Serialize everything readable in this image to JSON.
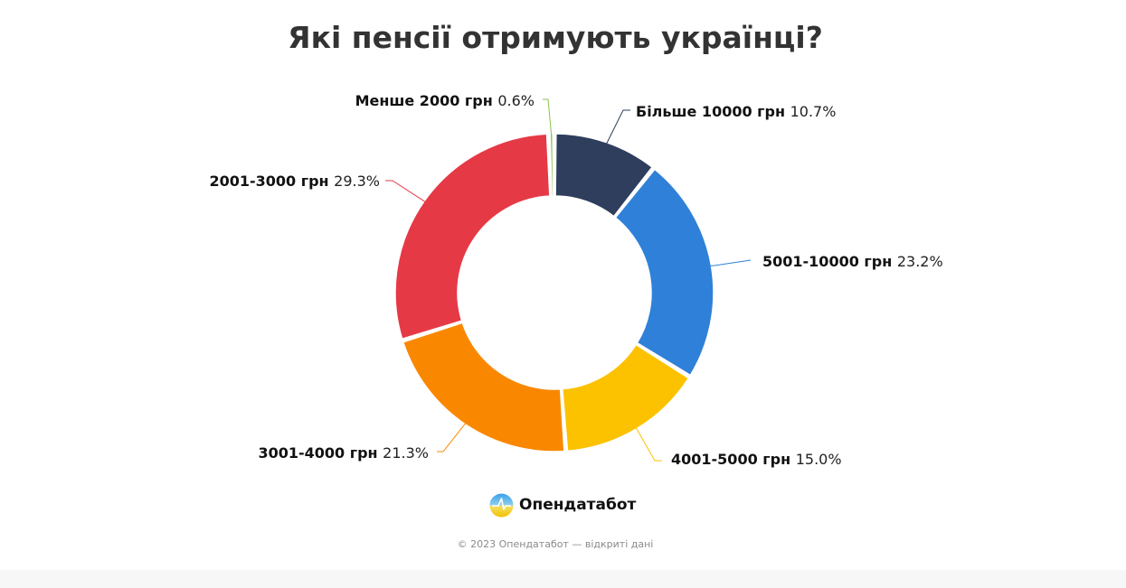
{
  "title": "Які пенсії отримують українці?",
  "brand": {
    "name": "Опендатабот",
    "logo_icon": "opendatabot-logo-icon"
  },
  "copyright": "© 2023 Опендатабот — відкриті дані",
  "chart_data": {
    "type": "pie",
    "variant": "donut",
    "title": "Які пенсії отримують українці?",
    "slices": [
      {
        "label": "Більше 10000 грн",
        "percent_text": "10.7%",
        "value": 10.7,
        "color": "#2e3e5c"
      },
      {
        "label": "5001-10000 грн",
        "percent_text": "23.2%",
        "value": 23.2,
        "color": "#2f80d8"
      },
      {
        "label": "4001-5000 грн",
        "percent_text": "15.0%",
        "value": 15.0,
        "color": "#fcc200"
      },
      {
        "label": "3001-4000 грн",
        "percent_text": "21.3%",
        "value": 21.3,
        "color": "#f98800"
      },
      {
        "label": "2001-3000 грн",
        "percent_text": "29.3%",
        "value": 29.3,
        "color": "#e63946"
      },
      {
        "label": "Менше 2000 грн",
        "percent_text": "0.6%",
        "value": 0.6,
        "color": "#8bc34a"
      }
    ],
    "legend": "none",
    "data_labels": "outside with leader lines"
  }
}
